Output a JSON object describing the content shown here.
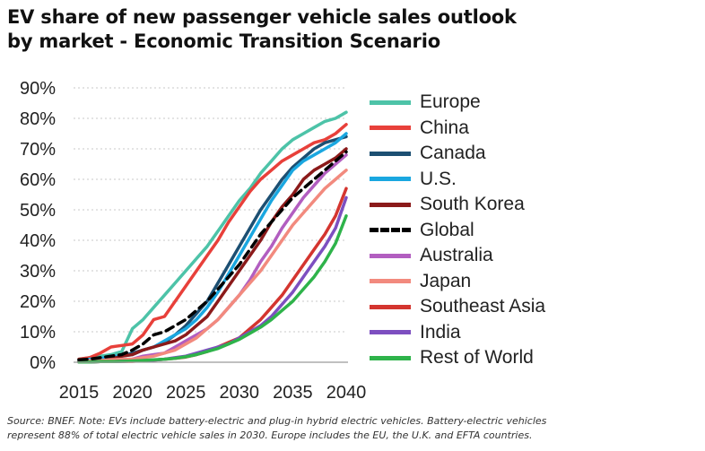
{
  "title": {
    "line1": "EV share of new passenger vehicle sales outlook",
    "line2": "by market - Economic Transition Scenario"
  },
  "footer": {
    "line1": "Source: BNEF. Note: EVs include battery-electric and plug-in hybrid electric vehicles. Battery-electric vehicles",
    "line2": "represent 88% of total electric vehicle sales in 2030. Europe includes the EU, the U.K. and EFTA countries."
  },
  "chart_data": {
    "type": "line",
    "title": "EV share of new passenger vehicle sales outlook by market - Economic Transition Scenario",
    "xlabel": "",
    "ylabel": "",
    "x": [
      2015,
      2016,
      2017,
      2018,
      2019,
      2020,
      2021,
      2022,
      2023,
      2024,
      2025,
      2026,
      2027,
      2028,
      2029,
      2030,
      2031,
      2032,
      2033,
      2034,
      2035,
      2036,
      2037,
      2038,
      2039,
      2040
    ],
    "xlim": [
      2015,
      2040
    ],
    "ylim": [
      0,
      90
    ],
    "x_ticks": [
      "2015",
      "2020",
      "2025",
      "2030",
      "2035",
      "2040"
    ],
    "y_ticks": [
      "0%",
      "10%",
      "20%",
      "30%",
      "40%",
      "50%",
      "60%",
      "70%",
      "80%",
      "90%"
    ],
    "grid": "horizontal dotted",
    "legend_position": "right",
    "series": [
      {
        "name": "Europe",
        "color": "#4dc3a8",
        "dashed": false,
        "values": [
          1,
          1.5,
          2,
          2.5,
          3.5,
          11,
          14,
          18,
          22,
          26,
          30,
          34,
          38,
          43,
          48,
          53,
          57,
          62,
          66,
          70,
          73,
          75,
          77,
          79,
          80,
          82
        ]
      },
      {
        "name": "China",
        "color": "#e8403a",
        "dashed": false,
        "values": [
          1,
          1.5,
          3,
          5,
          5.5,
          6,
          9,
          14,
          15,
          20,
          25,
          30,
          35,
          40,
          46,
          51,
          56,
          60,
          63,
          66,
          68,
          70,
          72,
          73,
          75,
          78
        ]
      },
      {
        "name": "Canada",
        "color": "#1c4f72",
        "dashed": false,
        "values": [
          0.5,
          0.8,
          1,
          1.5,
          2,
          3,
          4,
          5,
          6.5,
          9,
          12,
          16,
          20,
          26,
          32,
          38,
          44,
          50,
          55,
          60,
          64,
          67,
          70,
          72,
          73,
          74
        ]
      },
      {
        "name": "U.S.",
        "color": "#1aa7e0",
        "dashed": false,
        "values": [
          0.7,
          1,
          1.2,
          2,
          2,
          2.5,
          4,
          5,
          7,
          9,
          11,
          14,
          18,
          23,
          29,
          35,
          41,
          47,
          53,
          58,
          63,
          66,
          68,
          70,
          72,
          75
        ]
      },
      {
        "name": "South Korea",
        "color": "#8b1a1a",
        "dashed": false,
        "values": [
          0.2,
          0.3,
          0.5,
          1,
          2,
          2.5,
          4,
          5,
          6,
          7,
          9,
          12,
          15,
          20,
          25,
          30,
          35,
          40,
          46,
          51,
          55,
          60,
          63,
          65,
          67,
          70
        ]
      },
      {
        "name": "Global",
        "color": "#000000",
        "dashed": true,
        "values": [
          0.8,
          1,
          1.5,
          2,
          2.5,
          4,
          6,
          9,
          10,
          12,
          14,
          17,
          20,
          24,
          28,
          32,
          37,
          42,
          46,
          50,
          54,
          57,
          60,
          63,
          66,
          69
        ]
      },
      {
        "name": "Australia",
        "color": "#b25ec0",
        "dashed": false,
        "values": [
          0.2,
          0.3,
          0.4,
          0.5,
          0.8,
          1,
          2,
          2.5,
          3,
          5,
          7,
          9,
          11,
          14,
          18,
          22,
          27,
          33,
          38,
          44,
          49,
          54,
          58,
          62,
          65,
          68
        ]
      },
      {
        "name": "Japan",
        "color": "#f28a7e",
        "dashed": false,
        "values": [
          0.5,
          0.5,
          0.6,
          0.8,
          1,
          1,
          1.5,
          2,
          3,
          4,
          6,
          8,
          11,
          14,
          18,
          22,
          26,
          30,
          35,
          40,
          45,
          49,
          53,
          57,
          60,
          63
        ]
      },
      {
        "name": "Southeast Asia",
        "color": "#d4352f",
        "dashed": false,
        "values": [
          0.1,
          0.1,
          0.2,
          0.2,
          0.3,
          0.3,
          0.5,
          0.7,
          1,
          1.3,
          1.7,
          2.5,
          3.5,
          5,
          6.5,
          8,
          11,
          14,
          18,
          22,
          27,
          32,
          37,
          42,
          48,
          57
        ]
      },
      {
        "name": "India",
        "color": "#7d4fc0",
        "dashed": false,
        "values": [
          0.1,
          0.1,
          0.2,
          0.2,
          0.3,
          0.4,
          0.5,
          0.7,
          1,
          1.5,
          2,
          3,
          4,
          5,
          6,
          8,
          10,
          12,
          15,
          19,
          23,
          28,
          33,
          38,
          44,
          54
        ]
      },
      {
        "name": "Rest of World",
        "color": "#2eb34a",
        "dashed": false,
        "values": [
          0.1,
          0.1,
          0.2,
          0.2,
          0.3,
          0.4,
          0.6,
          0.8,
          1,
          1.3,
          1.8,
          2.5,
          3.5,
          4.5,
          6,
          7.5,
          9.5,
          11.5,
          14,
          17,
          20,
          24,
          28,
          33,
          39,
          48
        ]
      }
    ]
  }
}
